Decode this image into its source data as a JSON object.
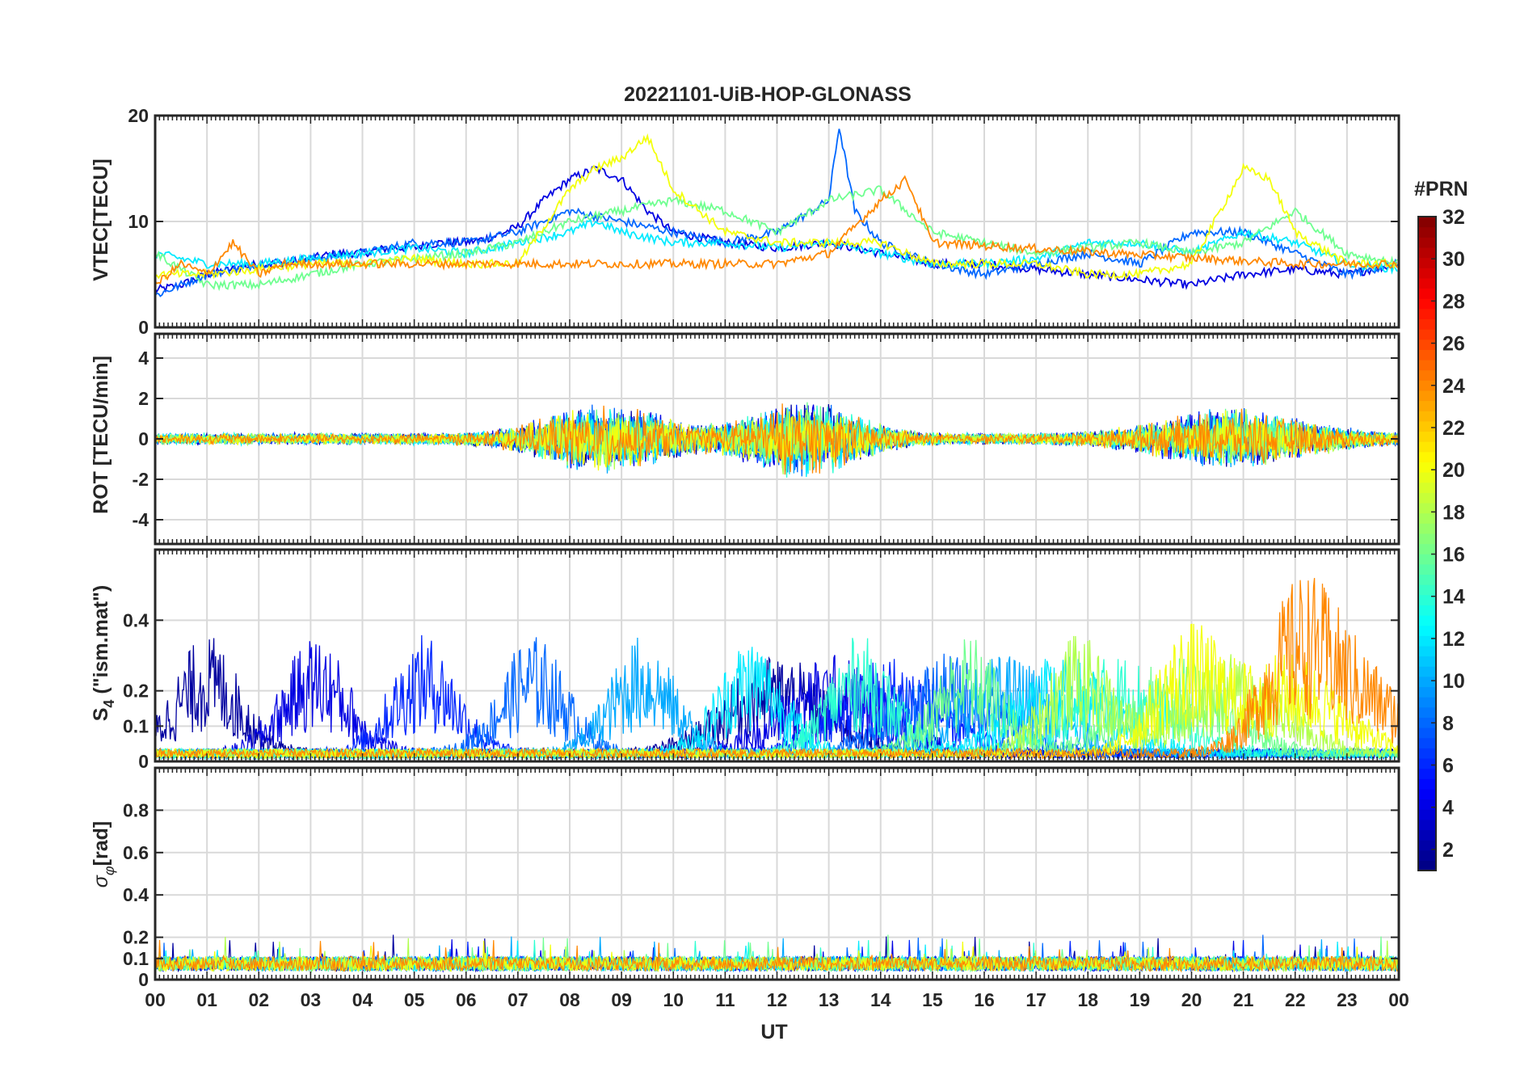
{
  "chart_data": [
    {
      "type": "line",
      "title": "20221101-UiB-HOP-GLONASS",
      "xlabel": "",
      "ylabel": "VTEC[TECU]",
      "xlim": [
        0,
        24
      ],
      "ylim": [
        0,
        20
      ],
      "yticks": [
        0,
        10,
        20
      ],
      "grid": true,
      "series_note_values": {
        "representative_curves": [
          {
            "prn": 4,
            "x": [
              0.0,
              0.5,
              1.0,
              1.5,
              2.0,
              2.5,
              3.0,
              3.5,
              4.0,
              4.5,
              5.0,
              5.5,
              6.0,
              6.5,
              7.0,
              7.5,
              8.0,
              8.5,
              9.0,
              9.5,
              10.0,
              11.0,
              12.0,
              13.0,
              14.0,
              15.0,
              16.0,
              17.0,
              18.0,
              19.0,
              20.0,
              21.0,
              22.0,
              23.0,
              24.0
            ],
            "y": [
              3.5,
              4,
              5,
              5.5,
              6,
              6,
              6.5,
              7,
              7,
              7.5,
              7.5,
              8,
              8,
              8.5,
              9.5,
              12,
              14,
              15,
              14,
              11,
              9,
              8,
              7.5,
              8,
              7,
              6,
              6,
              5.5,
              5,
              4.5,
              4,
              5,
              5.5,
              5,
              6
            ]
          },
          {
            "prn": 8,
            "x": [
              0.0,
              1.0,
              2.0,
              3.0,
              4.0,
              5.0,
              6.0,
              7.0,
              8.0,
              9.0,
              10.0,
              11.0,
              12.0,
              13.0,
              13.2,
              13.5,
              14.0,
              15.0,
              16.0,
              17.0,
              18.0,
              19.0,
              20.0,
              21.0,
              22.0,
              23.0,
              24.0
            ],
            "y": [
              3,
              5,
              6,
              6.5,
              7,
              8,
              8,
              9,
              11,
              10,
              9,
              8,
              9,
              12,
              19,
              11,
              8,
              6,
              5,
              6,
              7,
              6,
              9,
              9,
              7,
              5,
              6
            ]
          },
          {
            "prn": 12,
            "x": [
              0.0,
              1.0,
              2.0,
              3.0,
              4.0,
              5.0,
              6.0,
              7.0,
              8.0,
              8.5,
              9.0,
              10.0,
              11.0,
              12.0,
              13.0,
              14.0,
              15.0,
              16.0,
              17.0,
              18.0,
              19.0,
              20.0,
              21.0,
              22.0,
              23.0,
              24.0
            ],
            "y": [
              7,
              6,
              6,
              6.5,
              7,
              7.5,
              7,
              8,
              9,
              10,
              9,
              8,
              8,
              7.5,
              8,
              7,
              6,
              6,
              6.5,
              8,
              8,
              7,
              9,
              8,
              6,
              5.5
            ]
          },
          {
            "prn": 16,
            "x": [
              0.0,
              1.0,
              2.0,
              3.0,
              4.0,
              5.0,
              6.0,
              7.0,
              8.0,
              9.0,
              10.0,
              11.0,
              12.0,
              13.0,
              14.0,
              15.0,
              16.0,
              17.0,
              18.0,
              19.0,
              20.0,
              21.0,
              22.0,
              23.0,
              24.0
            ],
            "y": [
              7,
              4,
              4,
              5,
              6,
              6.5,
              7,
              8,
              10,
              11,
              12,
              11,
              9,
              12,
              13,
              9,
              8,
              7,
              7.5,
              8,
              7,
              8,
              11,
              7,
              6
            ]
          },
          {
            "prn": 20,
            "x": [
              0.0,
              1.0,
              2.0,
              3.0,
              4.0,
              5.0,
              6.0,
              7.0,
              8.0,
              8.5,
              9.0,
              9.5,
              10.0,
              11.0,
              12.0,
              13.0,
              14.0,
              15.0,
              16.0,
              17.0,
              18.0,
              19.0,
              20.0,
              21.0,
              21.5,
              22.0,
              23.0,
              24.0
            ],
            "y": [
              5,
              5,
              5.5,
              6,
              6,
              6.5,
              6,
              6,
              13,
              15,
              16,
              18,
              13,
              9,
              8,
              8,
              8,
              6,
              6,
              6,
              5,
              5,
              6,
              15,
              14,
              9,
              6,
              6
            ]
          },
          {
            "prn": 24,
            "x": [
              0.0,
              0.5,
              1.0,
              1.5,
              2.0,
              2.5,
              3.0,
              12.0,
              13.0,
              14.0,
              14.5,
              15.0,
              22.0,
              23.0,
              24.0
            ],
            "y": [
              4,
              6,
              5,
              8,
              5,
              6,
              6,
              6,
              7,
              12,
              14,
              8,
              6,
              6,
              6
            ]
          }
        ]
      },
      "series": []
    },
    {
      "type": "line",
      "xlabel": "",
      "ylabel": "ROT [TECU/min]",
      "xlim": [
        0,
        24
      ],
      "ylim": [
        -5.2,
        5.2
      ],
      "yticks": [
        -4,
        -2,
        0,
        2,
        4
      ],
      "grid": true,
      "series": []
    },
    {
      "type": "line",
      "xlabel": "",
      "ylabel_parts": [
        "S",
        "4",
        " (\"ism.mat\")"
      ],
      "xlim": [
        0,
        24
      ],
      "ylim": [
        0,
        0.6
      ],
      "yticks": [
        0,
        0.1,
        0.2,
        0.4
      ],
      "ytick_labels": [
        "0",
        "0.1",
        "0.2",
        "0.4"
      ],
      "grid": true,
      "series": []
    },
    {
      "type": "line",
      "xlabel": "UT",
      "ylabel_parts": [
        "σ",
        "φ",
        "[rad]"
      ],
      "xlim": [
        0,
        24
      ],
      "ylim": [
        0,
        1
      ],
      "yticks": [
        0,
        0.1,
        0.2,
        0.4,
        0.6,
        0.8
      ],
      "ytick_labels": [
        "0",
        "0.1",
        "0.2",
        "0.4",
        "0.6",
        "0.8"
      ],
      "grid": true,
      "series": []
    }
  ],
  "xtick_labels": [
    "00",
    "01",
    "02",
    "03",
    "04",
    "05",
    "06",
    "07",
    "08",
    "09",
    "10",
    "11",
    "12",
    "13",
    "14",
    "15",
    "16",
    "17",
    "18",
    "19",
    "20",
    "21",
    "22",
    "23",
    "00"
  ],
  "colorbar": {
    "title": "#PRN",
    "range": [
      1,
      32
    ],
    "ticks": [
      2,
      4,
      6,
      8,
      10,
      12,
      14,
      16,
      18,
      20,
      22,
      24,
      26,
      28,
      30,
      32
    ],
    "colormap": "jet"
  },
  "colors": {
    "axis": "#262626",
    "grid": "#d9d9d9"
  }
}
